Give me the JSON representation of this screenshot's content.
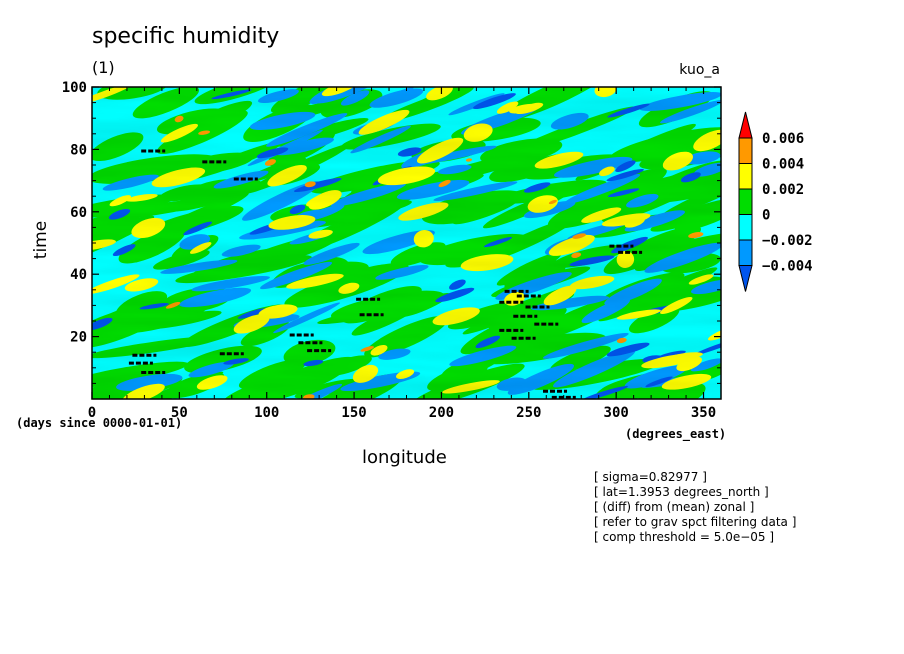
{
  "chart_data": {
    "type": "heatmap",
    "title": "specific humidity",
    "subtitle": "(1)",
    "run_label": "kuo_a",
    "xlabel": "longitude",
    "ylabel": "time",
    "x_unit": "(degrees_east)",
    "time_unit": "(days since 0000-01-01)",
    "xlim": [
      0,
      360
    ],
    "ylim": [
      0,
      100
    ],
    "x_ticks": [
      0,
      50,
      100,
      150,
      200,
      250,
      300,
      350
    ],
    "y_ticks": [
      20,
      40,
      60,
      80,
      100
    ],
    "x_tick_labels": [
      "0",
      "50",
      "100",
      "150",
      "200",
      "250",
      "300",
      "350"
    ],
    "y_tick_labels": [
      "20",
      "40",
      "60",
      "80",
      "100"
    ],
    "colorbar": {
      "levels": [
        "0.006",
        "0.004",
        "0.002",
        "0",
        "−0.002",
        "−0.004"
      ],
      "colors": [
        "#ff0000",
        "#ff9900",
        "#ffff00",
        "#00dd00",
        "#00ffff",
        "#0099ff",
        "#0055ee"
      ]
    },
    "threshold_marks": [
      {
        "lon": 35,
        "time": 79.5
      },
      {
        "lon": 70,
        "time": 76
      },
      {
        "lon": 88,
        "time": 70.5
      },
      {
        "lon": 303,
        "time": 49
      },
      {
        "lon": 308,
        "time": 47
      },
      {
        "lon": 158,
        "time": 32
      },
      {
        "lon": 160,
        "time": 27
      },
      {
        "lon": 243,
        "time": 34.5
      },
      {
        "lon": 250,
        "time": 33
      },
      {
        "lon": 240,
        "time": 31
      },
      {
        "lon": 255,
        "time": 29.5
      },
      {
        "lon": 248,
        "time": 26.5
      },
      {
        "lon": 260,
        "time": 24
      },
      {
        "lon": 240,
        "time": 22
      },
      {
        "lon": 247,
        "time": 19.5
      },
      {
        "lon": 120,
        "time": 20.5
      },
      {
        "lon": 125,
        "time": 18
      },
      {
        "lon": 130,
        "time": 15.5
      },
      {
        "lon": 80,
        "time": 14.5
      },
      {
        "lon": 30,
        "time": 14
      },
      {
        "lon": 28,
        "time": 11.5
      },
      {
        "lon": 35,
        "time": 8.5
      },
      {
        "lon": 265,
        "time": 2.5
      },
      {
        "lon": 270,
        "time": 0.5
      }
    ]
  },
  "notes": [
    "[ sigma=0.82977 ]",
    "[ lat=1.3953 degrees_north ]",
    "[ (diff) from (mean) zonal ]",
    "[ refer to grav spct filtering data ]",
    "[ comp threshold = 5.0e−05 ]"
  ]
}
